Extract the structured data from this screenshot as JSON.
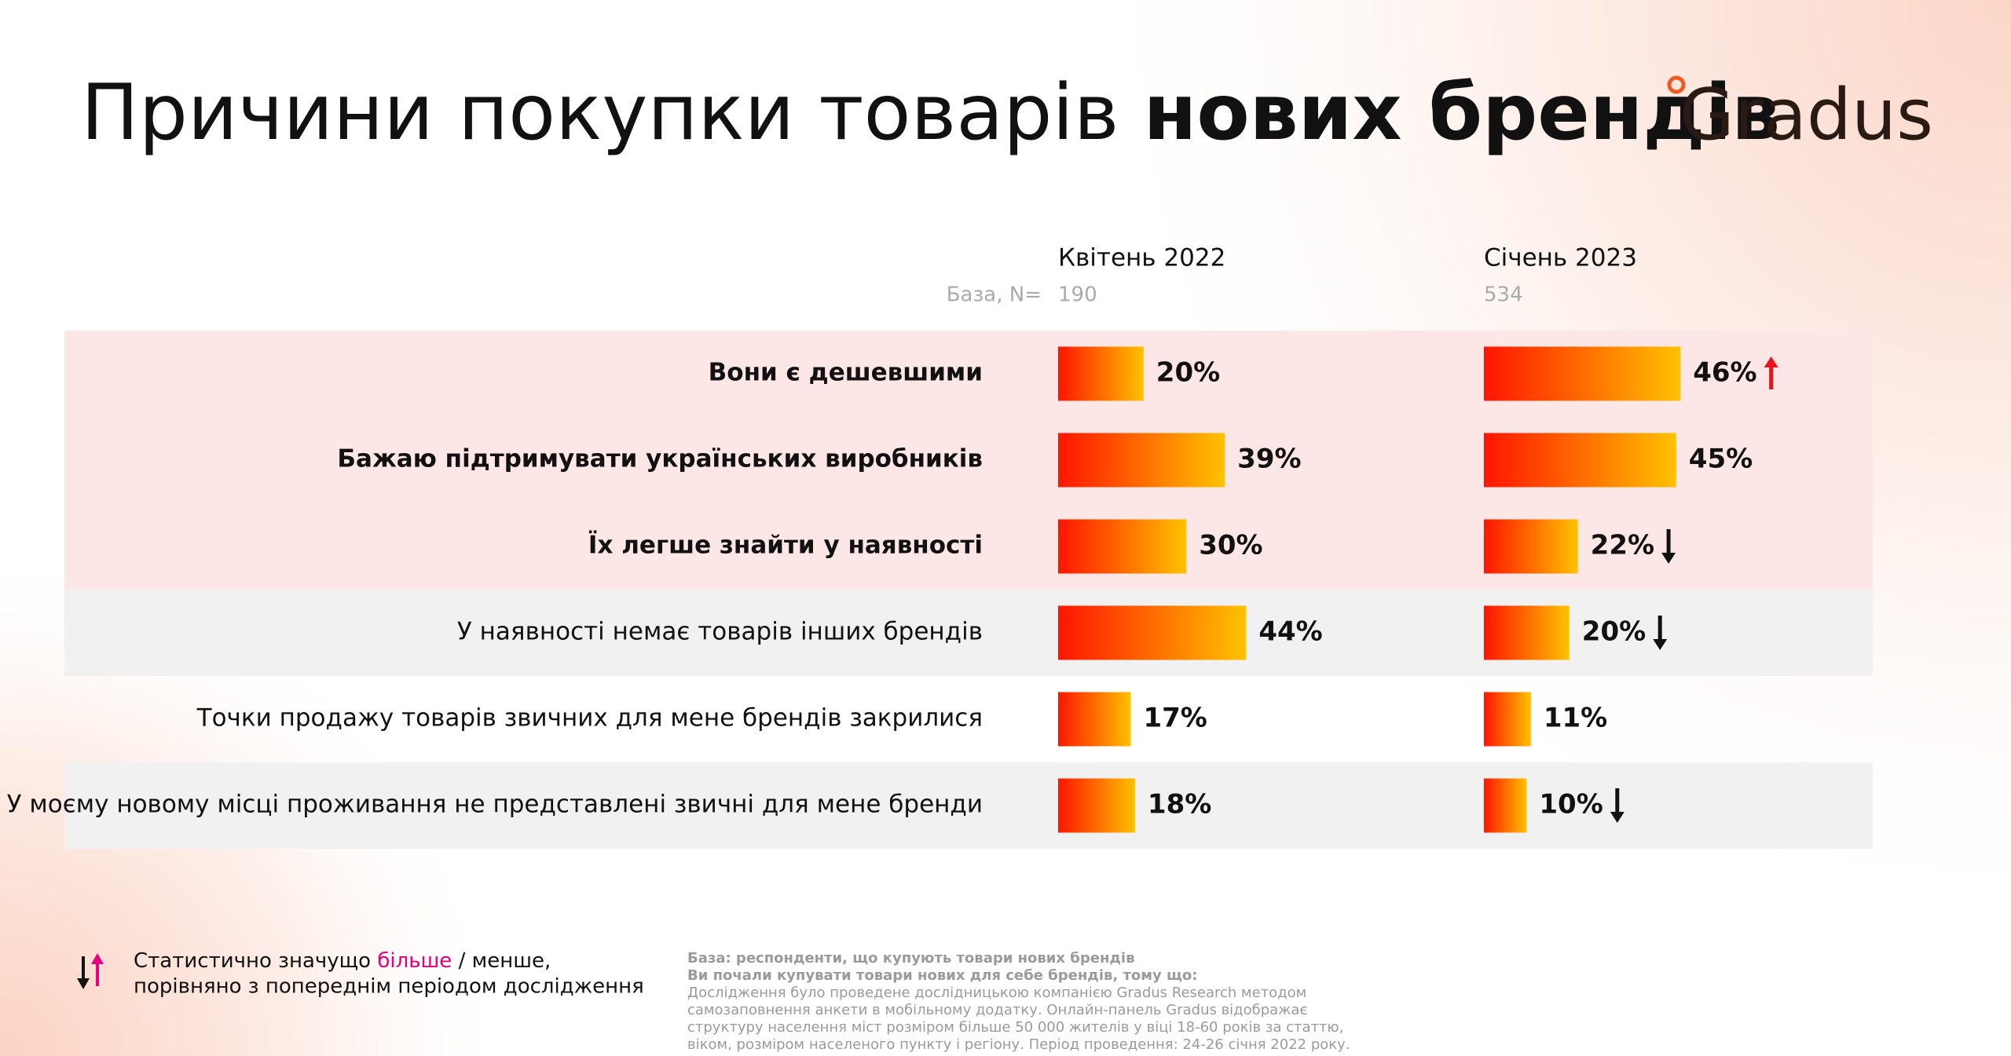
{
  "header": {
    "title": "Причини покупки товарів",
    "title_bold": "нових брендів",
    "logo": "Gradus"
  },
  "chart_data": {
    "type": "bar",
    "orientation": "horizontal",
    "base_label": "База, N=",
    "categories": [
      "Вони є дешевшими",
      "Бажаю підтримувати українських виробників",
      "Їх легше знайти у наявності",
      "У наявності немає товарів інших брендів",
      "Точки продажу товарів звичних для мене брендів закрилися",
      "У моєму новому місці проживання не представлені звичні для мене бренди"
    ],
    "series": [
      {
        "name": "Квітень 2022",
        "base": 190,
        "color": [
          "#ff1500",
          "#ffc200"
        ],
        "values": [
          20,
          39,
          30,
          44,
          17,
          18
        ],
        "value_labels": [
          "20%",
          "39%",
          "30%",
          "44%",
          "17%",
          "18%"
        ],
        "changes": [
          null,
          null,
          null,
          null,
          null,
          null
        ]
      },
      {
        "name": "Січень 2023",
        "base": 534,
        "color": [
          "#ff1500",
          "#ffc200"
        ],
        "values": [
          46,
          45,
          22,
          20,
          11,
          10
        ],
        "value_labels": [
          "46%",
          "45%",
          "22%",
          "20%",
          "11%",
          "10%"
        ],
        "changes": [
          "up",
          null,
          "down",
          "down",
          null,
          "down"
        ]
      }
    ]
  },
  "legend": {
    "text_before": "Статистично значущо",
    "more": "більше",
    "text_after": "/ менше,",
    "line2": "порівняно з попереднім періодом дослідження"
  },
  "footnote": {
    "bold_lines": [
      "База: респонденти, що купують товари нових брендів",
      "Ви почали купувати товари нових для себе брендів, тому що:"
    ],
    "lines": [
      "Дослідження було проведене дослідницькою компанією Gradus Research методом",
      "самозаповнення анкети в мобільному додатку. Онлайн-панель Gradus відображає",
      "структуру населення міст розміром більше 50 000 жителів у віці 18-60 років за статтю,",
      "віком, розміром населеного пункту і регіону. Період проведення: 24-26 січня 2022 року."
    ]
  }
}
